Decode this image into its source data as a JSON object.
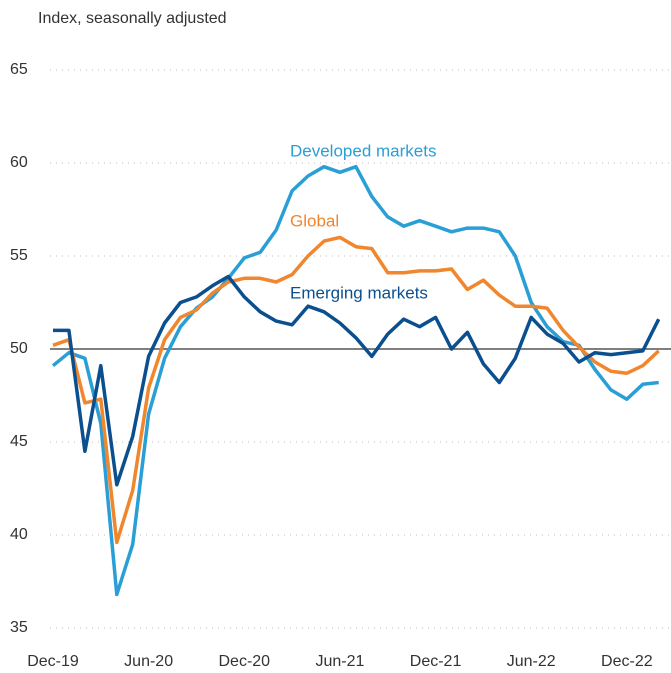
{
  "chart_data": {
    "type": "line",
    "subtitle": "Index, seasonally adjusted",
    "categories": [
      "Dec-19",
      null,
      null,
      null,
      null,
      null,
      "Jun-20",
      null,
      null,
      null,
      null,
      null,
      "Dec-20",
      null,
      null,
      null,
      null,
      null,
      "Jun-21",
      null,
      null,
      null,
      null,
      null,
      "Dec-21",
      null,
      null,
      null,
      null,
      null,
      "Jun-22",
      null,
      null,
      null,
      null,
      null,
      "Dec-22",
      null,
      null
    ],
    "series": [
      {
        "name": "Developed markets",
        "color": "#2a9fd6",
        "values": [
          49.1,
          49.8,
          49.5,
          46.0,
          36.8,
          39.5,
          46.5,
          49.5,
          51.2,
          52.2,
          52.8,
          53.8,
          54.9,
          55.2,
          56.4,
          58.5,
          59.3,
          59.8,
          59.5,
          59.8,
          58.2,
          57.1,
          56.6,
          56.9,
          56.6,
          56.3,
          56.5,
          56.5,
          56.3,
          55.0,
          52.5,
          51.2,
          50.4,
          50.2,
          48.9,
          47.8,
          47.3,
          48.1,
          48.2
        ]
      },
      {
        "name": "Global",
        "color": "#f0862d",
        "values": [
          50.2,
          50.5,
          47.1,
          47.3,
          39.6,
          42.4,
          47.9,
          50.5,
          51.7,
          52.1,
          53.0,
          53.6,
          53.8,
          53.8,
          53.6,
          54.0,
          55.0,
          55.8,
          56.0,
          55.5,
          55.4,
          54.1,
          54.1,
          54.2,
          54.2,
          54.3,
          53.2,
          53.7,
          52.9,
          52.3,
          52.3,
          52.2,
          51.0,
          50.1,
          49.3,
          48.8,
          48.7,
          49.1,
          49.9
        ]
      },
      {
        "name": "Emerging markets",
        "color": "#0b4f8f",
        "values": [
          51.0,
          51.0,
          44.5,
          49.1,
          42.7,
          45.3,
          49.6,
          51.4,
          52.5,
          52.8,
          53.4,
          53.9,
          52.8,
          52.0,
          51.5,
          51.3,
          52.3,
          52.0,
          51.4,
          50.6,
          49.6,
          50.8,
          51.6,
          51.2,
          51.7,
          50.0,
          50.9,
          49.2,
          48.2,
          49.5,
          51.7,
          50.8,
          50.3,
          49.3,
          49.8,
          49.7,
          49.8,
          49.9,
          51.6
        ]
      }
    ],
    "ylim": [
      35,
      65
    ],
    "yticks": [
      35,
      40,
      45,
      50,
      55,
      60,
      65
    ],
    "grid": true,
    "reference_line": 50
  }
}
